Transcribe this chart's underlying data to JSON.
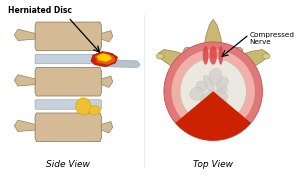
{
  "title_left": "Herniated Disc",
  "label_side": "Side View",
  "label_top": "Top View",
  "compressed_nerve": "Compressed\nNerve",
  "bg_color": "#ffffff",
  "side": {
    "vertebra_color": "#d4bb96",
    "vertebra_edge": "#9a8060",
    "disc_color": "#c0cdd8",
    "disc_edge": "#8899aa",
    "herniation_red": "#cc2200",
    "herniation_orange": "#ee6600",
    "herniation_yellow": "#ffcc00",
    "nerve_yellow": "#f0c030",
    "shadow_color": "#b0bec8"
  },
  "top": {
    "annulus_outer": "#e07878",
    "annulus_inner": "#f0b0a8",
    "nucleus_fill": "#ebe8e0",
    "nucleus_gray": "#d0ccc8",
    "vertebra_color": "#d4bb96",
    "vertebra_edge": "#9a8060",
    "foramen_outer": "#c8aa60",
    "foramen_inner": "#a08830",
    "process_color": "#c8b870",
    "process_tip": "#d4d080",
    "hern_red": "#cc2200",
    "hern_streaks": "#dd4444",
    "nerve_arrow": "#000000"
  }
}
